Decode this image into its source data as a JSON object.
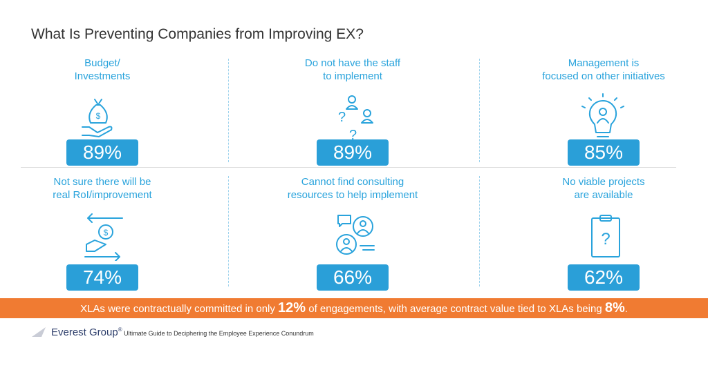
{
  "header": {
    "title": "What Is Preventing Companies from Improving EX?"
  },
  "items": [
    {
      "label": [
        "Budget/",
        "Investments"
      ],
      "value": "89%"
    },
    {
      "label": [
        "Do not have the staff",
        "to implement"
      ],
      "value": "89%"
    },
    {
      "label": [
        "Management is",
        "focused on other initiatives"
      ],
      "value": "85%"
    },
    {
      "label": [
        "Not sure there will be",
        "real RoI/improvement"
      ],
      "value": "74%"
    },
    {
      "label": [
        "Cannot find consulting",
        "resources to help implement"
      ],
      "value": "66%"
    },
    {
      "label": [
        "No viable projects",
        "are available"
      ],
      "value": "62%"
    }
  ],
  "banner": [
    "XLAs were contractually committed in only ",
    "12%",
    " of engagements, with average contract value tied to XLAs being ",
    "8%",
    "."
  ],
  "footer": {
    "brand": "Everest Group",
    "mark": "®",
    "source": "Ultimate Guide to Deciphering the Employee Experience Conundrum"
  }
}
